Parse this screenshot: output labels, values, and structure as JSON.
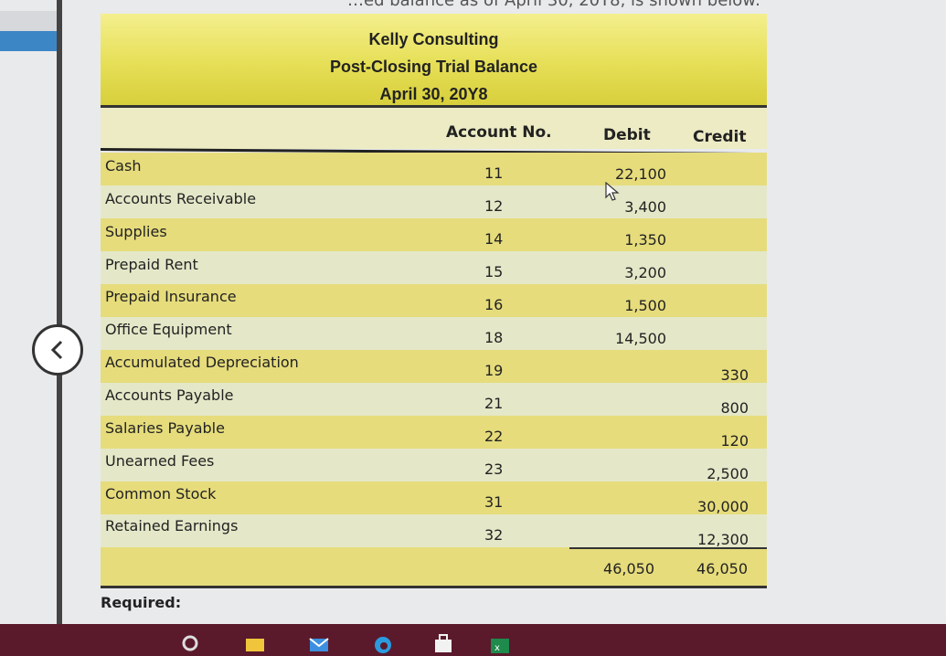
{
  "page": {
    "top_text": "…ed balance as of April 30, 20Y8, is shown below:",
    "required_label": "Required:"
  },
  "trial_balance": {
    "company": "Kelly Consulting",
    "statement": "Post-Closing Trial Balance",
    "date": "April 30, 20Y8",
    "columns": {
      "account_no": "Account No.",
      "debit": "Debit",
      "credit": "Credit"
    },
    "rows": [
      {
        "name": "Cash",
        "acct": "11",
        "debit": "22,100",
        "credit": ""
      },
      {
        "name": "Accounts Receivable",
        "acct": "12",
        "debit": "3,400",
        "credit": ""
      },
      {
        "name": "Supplies",
        "acct": "14",
        "debit": "1,350",
        "credit": ""
      },
      {
        "name": "Prepaid Rent",
        "acct": "15",
        "debit": "3,200",
        "credit": ""
      },
      {
        "name": "Prepaid Insurance",
        "acct": "16",
        "debit": "1,500",
        "credit": ""
      },
      {
        "name": "Office Equipment",
        "acct": "18",
        "debit": "14,500",
        "credit": ""
      },
      {
        "name": "Accumulated Depreciation",
        "acct": "19",
        "debit": "",
        "credit": "330"
      },
      {
        "name": "Accounts Payable",
        "acct": "21",
        "debit": "",
        "credit": "800"
      },
      {
        "name": "Salaries Payable",
        "acct": "22",
        "debit": "",
        "credit": "120"
      },
      {
        "name": "Unearned Fees",
        "acct": "23",
        "debit": "",
        "credit": "2,500"
      },
      {
        "name": "Common Stock",
        "acct": "31",
        "debit": "",
        "credit": "30,000"
      },
      {
        "name": "Retained Earnings",
        "acct": "32",
        "debit": "",
        "credit": "12,300"
      }
    ],
    "totals": {
      "debit": "46,050",
      "credit": "46,050"
    }
  },
  "icons": {
    "back": "chevron-left-icon",
    "cursor": "mouse-pointer-icon",
    "taskbar": [
      "search-icon",
      "file-explorer-icon",
      "mail-icon",
      "edge-browser-icon",
      "store-icon",
      "excel-icon"
    ]
  }
}
